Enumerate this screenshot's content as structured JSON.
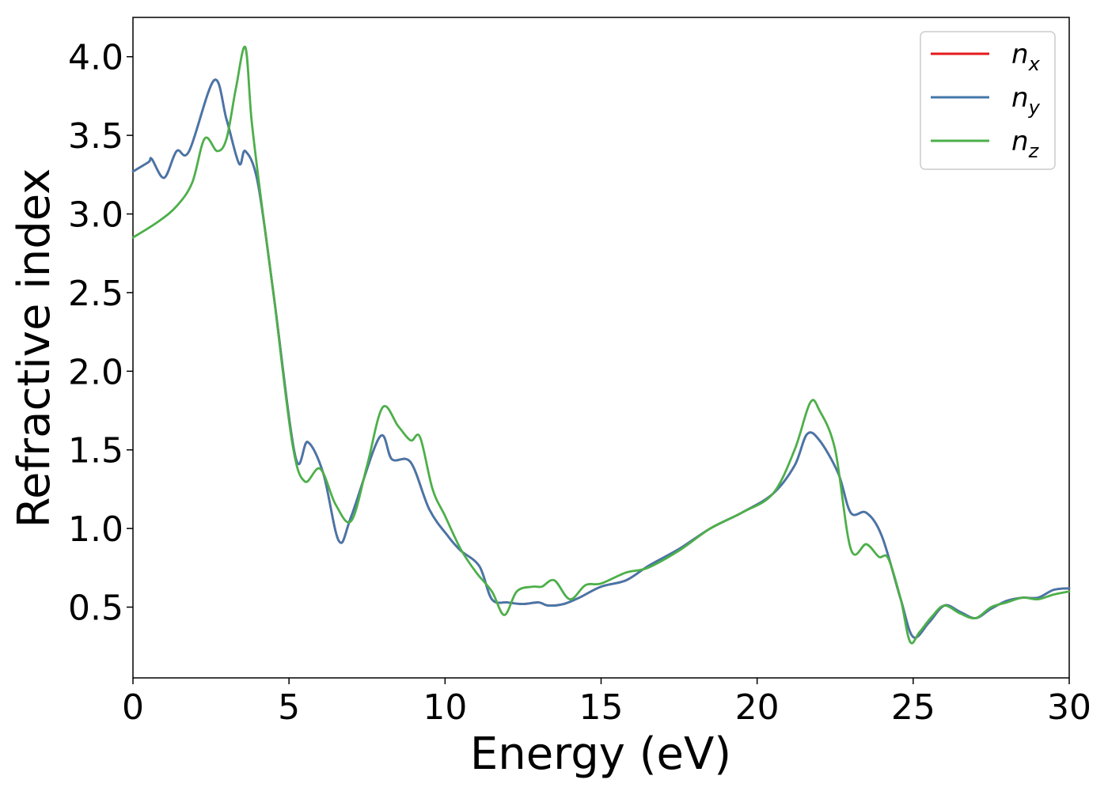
{
  "chart_data": {
    "type": "line",
    "xlabel": "Energy (eV)",
    "ylabel": "Refractive index",
    "xlim": [
      0,
      30
    ],
    "ylim": [
      0.05,
      4.25
    ],
    "xticks": [
      "0",
      "5",
      "10",
      "15",
      "20",
      "25",
      "30"
    ],
    "yticks": [
      "0.5",
      "1.0",
      "1.5",
      "2.0",
      "2.5",
      "3.0",
      "3.5",
      "4.0"
    ],
    "grid": false,
    "legend_position": "top-right",
    "series": [
      {
        "name": "n_x",
        "label_base": "n",
        "label_sub": "x",
        "color": "#e41a1c",
        "x": [
          0,
          0.5,
          0.6,
          1.0,
          1.4,
          1.8,
          2.6,
          3.0,
          3.4,
          3.6,
          4.0,
          4.5,
          5.2,
          5.6,
          6.1,
          6.6,
          7.0,
          7.9,
          8.3,
          8.9,
          9.5,
          10.1,
          10.5,
          11.1,
          11.5,
          12.0,
          12.5,
          13.0,
          13.3,
          13.8,
          14.3,
          15.0,
          15.8,
          16.5,
          17.5,
          18.5,
          19.5,
          20.5,
          21.2,
          21.6,
          22.0,
          22.6,
          23.0,
          23.5,
          24.0,
          24.6,
          25.0,
          25.5,
          26.0,
          26.5,
          27.0,
          27.5,
          28.0,
          28.5,
          29.0,
          29.5,
          30.0
        ],
        "y": [
          3.27,
          3.33,
          3.35,
          3.23,
          3.4,
          3.4,
          3.85,
          3.6,
          3.32,
          3.4,
          3.2,
          2.5,
          1.46,
          1.55,
          1.35,
          0.92,
          1.08,
          1.58,
          1.44,
          1.42,
          1.12,
          0.95,
          0.86,
          0.76,
          0.55,
          0.53,
          0.52,
          0.53,
          0.51,
          0.52,
          0.56,
          0.63,
          0.67,
          0.76,
          0.87,
          1.0,
          1.1,
          1.22,
          1.4,
          1.6,
          1.56,
          1.35,
          1.1,
          1.1,
          0.95,
          0.55,
          0.31,
          0.4,
          0.51,
          0.47,
          0.43,
          0.49,
          0.54,
          0.56,
          0.56,
          0.61,
          0.62
        ]
      },
      {
        "name": "n_y",
        "label_base": "n",
        "label_sub": "y",
        "color": "#4477aa",
        "x": [
          0,
          0.5,
          0.6,
          1.0,
          1.4,
          1.8,
          2.6,
          3.0,
          3.4,
          3.6,
          4.0,
          4.5,
          5.2,
          5.6,
          6.1,
          6.6,
          7.0,
          7.9,
          8.3,
          8.9,
          9.5,
          10.1,
          10.5,
          11.1,
          11.5,
          12.0,
          12.5,
          13.0,
          13.3,
          13.8,
          14.3,
          15.0,
          15.8,
          16.5,
          17.5,
          18.5,
          19.5,
          20.5,
          21.2,
          21.6,
          22.0,
          22.6,
          23.0,
          23.5,
          24.0,
          24.6,
          25.0,
          25.5,
          26.0,
          26.5,
          27.0,
          27.5,
          28.0,
          28.5,
          29.0,
          29.5,
          30.0
        ],
        "y": [
          3.27,
          3.33,
          3.35,
          3.23,
          3.4,
          3.4,
          3.85,
          3.6,
          3.32,
          3.4,
          3.2,
          2.5,
          1.46,
          1.55,
          1.35,
          0.92,
          1.08,
          1.58,
          1.44,
          1.42,
          1.12,
          0.95,
          0.86,
          0.76,
          0.55,
          0.53,
          0.52,
          0.53,
          0.51,
          0.52,
          0.56,
          0.63,
          0.67,
          0.76,
          0.87,
          1.0,
          1.1,
          1.22,
          1.4,
          1.6,
          1.56,
          1.35,
          1.1,
          1.1,
          0.95,
          0.55,
          0.31,
          0.4,
          0.51,
          0.47,
          0.43,
          0.49,
          0.54,
          0.56,
          0.56,
          0.61,
          0.62
        ]
      },
      {
        "name": "n_z",
        "label_base": "n",
        "label_sub": "z",
        "color": "#4daf4a",
        "x": [
          0,
          0.8,
          1.4,
          1.9,
          2.3,
          2.7,
          3.0,
          3.3,
          3.6,
          3.8,
          4.1,
          4.5,
          5.1,
          5.5,
          6.0,
          6.5,
          7.0,
          7.5,
          8.0,
          8.5,
          8.9,
          9.2,
          9.6,
          10.0,
          10.5,
          11.0,
          11.5,
          11.9,
          12.3,
          12.8,
          13.1,
          13.5,
          14.0,
          14.5,
          15.0,
          15.8,
          16.5,
          17.5,
          18.5,
          19.5,
          20.5,
          21.2,
          21.7,
          22.0,
          22.5,
          23.0,
          23.5,
          23.9,
          24.2,
          24.6,
          24.9,
          25.2,
          25.6,
          26.0,
          26.5,
          27.0,
          27.5,
          28.0,
          28.5,
          29.0,
          29.5,
          30.0
        ],
        "y": [
          2.85,
          2.95,
          3.05,
          3.2,
          3.48,
          3.4,
          3.48,
          3.8,
          4.06,
          3.6,
          3.1,
          2.5,
          1.55,
          1.3,
          1.38,
          1.15,
          1.05,
          1.4,
          1.77,
          1.65,
          1.56,
          1.58,
          1.25,
          1.08,
          0.87,
          0.72,
          0.6,
          0.45,
          0.6,
          0.63,
          0.63,
          0.67,
          0.55,
          0.64,
          0.65,
          0.72,
          0.75,
          0.86,
          1.0,
          1.1,
          1.22,
          1.5,
          1.8,
          1.75,
          1.5,
          0.87,
          0.9,
          0.82,
          0.81,
          0.55,
          0.28,
          0.34,
          0.44,
          0.51,
          0.46,
          0.43,
          0.5,
          0.53,
          0.56,
          0.55,
          0.58,
          0.6
        ]
      }
    ]
  }
}
